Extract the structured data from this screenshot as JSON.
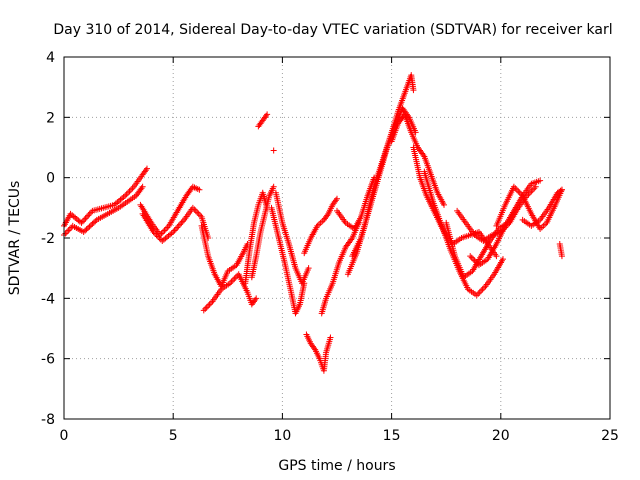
{
  "chart_data": {
    "type": "scatter",
    "title": "Day 310 of 2014, Sidereal Day-to-day VTEC variation (SDTVAR) for receiver karl",
    "xlabel": "GPS time / hours",
    "ylabel": "SDTVAR / TECUs",
    "xlim": [
      0,
      25
    ],
    "ylim": [
      -8,
      4
    ],
    "xticks": [
      0,
      5,
      10,
      15,
      20,
      25
    ],
    "yticks": [
      -8,
      -6,
      -4,
      -2,
      0,
      2,
      4
    ],
    "grid": true,
    "marker": "+",
    "color": "#ff0000",
    "series": [
      {
        "name": "SDTVAR",
        "tracks": [
          {
            "points": [
              [
                0.0,
                -1.6
              ],
              [
                0.3,
                -1.2
              ],
              [
                0.8,
                -1.5
              ],
              [
                1.3,
                -1.1
              ],
              [
                1.8,
                -1.0
              ],
              [
                2.3,
                -0.9
              ],
              [
                2.8,
                -0.6
              ],
              [
                3.2,
                -0.3
              ],
              [
                3.6,
                0.1
              ],
              [
                3.8,
                0.3
              ]
            ]
          },
          {
            "points": [
              [
                0.0,
                -1.9
              ],
              [
                0.4,
                -1.6
              ],
              [
                0.9,
                -1.8
              ],
              [
                1.5,
                -1.4
              ],
              [
                2.0,
                -1.2
              ],
              [
                2.5,
                -1.0
              ],
              [
                2.9,
                -0.8
              ],
              [
                3.3,
                -0.6
              ],
              [
                3.6,
                -0.3
              ]
            ]
          },
          {
            "points": [
              [
                3.5,
                -0.9
              ],
              [
                4.0,
                -1.5
              ],
              [
                4.4,
                -1.9
              ],
              [
                4.8,
                -1.6
              ],
              [
                5.2,
                -1.1
              ],
              [
                5.6,
                -0.6
              ],
              [
                5.9,
                -0.3
              ],
              [
                6.2,
                -0.4
              ]
            ]
          },
          {
            "points": [
              [
                3.6,
                -1.2
              ],
              [
                4.1,
                -1.8
              ],
              [
                4.5,
                -2.1
              ],
              [
                5.0,
                -1.8
              ],
              [
                5.5,
                -1.4
              ],
              [
                5.9,
                -1.0
              ],
              [
                6.3,
                -1.3
              ],
              [
                6.6,
                -2.0
              ]
            ]
          },
          {
            "points": [
              [
                6.3,
                -1.6
              ],
              [
                6.6,
                -2.6
              ],
              [
                6.9,
                -3.2
              ],
              [
                7.2,
                -3.6
              ],
              [
                7.5,
                -3.1
              ],
              [
                7.9,
                -2.9
              ],
              [
                8.2,
                -2.5
              ],
              [
                8.4,
                -2.2
              ]
            ]
          },
          {
            "points": [
              [
                6.4,
                -4.4
              ],
              [
                6.8,
                -4.1
              ],
              [
                7.2,
                -3.7
              ],
              [
                7.6,
                -3.5
              ],
              [
                8.0,
                -3.2
              ],
              [
                8.4,
                -3.8
              ],
              [
                8.6,
                -4.2
              ],
              [
                8.8,
                -4.0
              ]
            ]
          },
          {
            "points": [
              [
                8.3,
                -3.5
              ],
              [
                8.5,
                -2.4
              ],
              [
                8.7,
                -1.5
              ],
              [
                8.9,
                -0.9
              ],
              [
                9.1,
                -0.5
              ],
              [
                9.3,
                -1.0
              ]
            ]
          },
          {
            "points": [
              [
                8.6,
                -3.3
              ],
              [
                8.8,
                -2.6
              ],
              [
                9.0,
                -1.8
              ],
              [
                9.2,
                -1.2
              ],
              [
                9.4,
                -0.6
              ],
              [
                9.6,
                -0.3
              ]
            ]
          },
          {
            "points": [
              [
                8.9,
                1.7
              ],
              [
                9.0,
                1.8
              ],
              [
                9.1,
                1.9
              ],
              [
                9.2,
                2.0
              ],
              [
                9.3,
                2.1
              ]
            ]
          },
          {
            "points": [
              [
                9.5,
                -1.0
              ],
              [
                9.8,
                -1.9
              ],
              [
                10.1,
                -2.8
              ],
              [
                10.4,
                -3.8
              ],
              [
                10.6,
                -4.5
              ],
              [
                10.8,
                -4.2
              ],
              [
                11.0,
                -3.5
              ]
            ]
          },
          {
            "points": [
              [
                9.7,
                -0.5
              ],
              [
                10.0,
                -1.5
              ],
              [
                10.3,
                -2.2
              ],
              [
                10.6,
                -3.0
              ],
              [
                10.9,
                -3.5
              ],
              [
                11.2,
                -3.0
              ]
            ]
          },
          {
            "points": [
              [
                11.1,
                -5.2
              ],
              [
                11.3,
                -5.5
              ],
              [
                11.5,
                -5.7
              ],
              [
                11.7,
                -6.0
              ],
              [
                11.9,
                -6.4
              ],
              [
                12.0,
                -5.8
              ],
              [
                12.2,
                -5.3
              ]
            ]
          },
          {
            "points": [
              [
                11.0,
                -2.5
              ],
              [
                11.3,
                -2.0
              ],
              [
                11.6,
                -1.6
              ],
              [
                11.9,
                -1.4
              ],
              [
                12.1,
                -1.2
              ],
              [
                12.3,
                -0.9
              ],
              [
                12.5,
                -0.7
              ]
            ]
          },
          {
            "points": [
              [
                11.8,
                -4.5
              ],
              [
                12.0,
                -4.0
              ],
              [
                12.3,
                -3.5
              ],
              [
                12.6,
                -2.8
              ],
              [
                12.9,
                -2.3
              ],
              [
                13.2,
                -2.0
              ],
              [
                13.5,
                -1.5
              ]
            ]
          },
          {
            "points": [
              [
                12.5,
                -1.1
              ],
              [
                12.9,
                -1.5
              ],
              [
                13.3,
                -1.7
              ],
              [
                13.6,
                -1.3
              ],
              [
                13.9,
                -0.6
              ],
              [
                14.2,
                0.0
              ]
            ]
          },
          {
            "points": [
              [
                13.0,
                -3.2
              ],
              [
                13.4,
                -2.5
              ],
              [
                13.8,
                -1.5
              ],
              [
                14.2,
                -0.3
              ],
              [
                14.6,
                0.6
              ],
              [
                15.0,
                1.5
              ],
              [
                15.3,
                2.2
              ],
              [
                15.6,
                2.8
              ],
              [
                15.9,
                3.4
              ],
              [
                16.0,
                2.9
              ]
            ]
          },
          {
            "points": [
              [
                13.2,
                -2.6
              ],
              [
                13.6,
                -2.0
              ],
              [
                14.0,
                -1.0
              ],
              [
                14.4,
                0.0
              ],
              [
                14.8,
                1.0
              ],
              [
                15.2,
                1.8
              ],
              [
                15.5,
                2.3
              ],
              [
                15.8,
                2.0
              ],
              [
                16.1,
                1.5
              ]
            ]
          },
          {
            "points": [
              [
                15.0,
                1.2
              ],
              [
                15.3,
                1.8
              ],
              [
                15.6,
                2.1
              ],
              [
                15.9,
                1.5
              ],
              [
                16.2,
                1.0
              ],
              [
                16.5,
                0.7
              ],
              [
                16.8,
                0.1
              ],
              [
                17.1,
                -0.5
              ],
              [
                17.4,
                -0.9
              ]
            ]
          },
          {
            "points": [
              [
                16.0,
                1.0
              ],
              [
                16.3,
                0.0
              ],
              [
                16.6,
                -0.6
              ],
              [
                17.0,
                -1.2
              ],
              [
                17.4,
                -1.8
              ],
              [
                17.8,
                -2.2
              ],
              [
                18.2,
                -2.0
              ],
              [
                18.6,
                -1.9
              ],
              [
                19.0,
                -1.8
              ],
              [
                19.4,
                -2.2
              ],
              [
                19.8,
                -2.6
              ]
            ]
          },
          {
            "points": [
              [
                16.5,
                0.2
              ],
              [
                16.9,
                -0.8
              ],
              [
                17.3,
                -1.6
              ],
              [
                17.7,
                -2.4
              ],
              [
                18.1,
                -3.1
              ],
              [
                18.5,
                -3.7
              ],
              [
                18.9,
                -3.9
              ],
              [
                19.3,
                -3.6
              ],
              [
                19.7,
                -3.2
              ],
              [
                20.1,
                -2.7
              ]
            ]
          },
          {
            "points": [
              [
                17.5,
                -1.5
              ],
              [
                17.9,
                -2.6
              ],
              [
                18.3,
                -3.3
              ],
              [
                18.7,
                -3.1
              ],
              [
                19.1,
                -2.6
              ],
              [
                19.5,
                -2.1
              ],
              [
                19.9,
                -1.7
              ],
              [
                20.3,
                -1.5
              ]
            ]
          },
          {
            "points": [
              [
                18.0,
                -1.1
              ],
              [
                18.4,
                -1.5
              ],
              [
                18.8,
                -1.9
              ],
              [
                19.2,
                -2.1
              ],
              [
                19.6,
                -1.9
              ],
              [
                20.0,
                -1.8
              ],
              [
                20.4,
                -1.5
              ],
              [
                20.8,
                -1.0
              ],
              [
                21.2,
                -0.6
              ],
              [
                21.6,
                -0.3
              ]
            ]
          },
          {
            "points": [
              [
                18.6,
                -2.6
              ],
              [
                19.0,
                -2.9
              ],
              [
                19.4,
                -2.7
              ],
              [
                19.8,
                -2.2
              ],
              [
                20.2,
                -1.6
              ],
              [
                20.6,
                -1.1
              ],
              [
                21.0,
                -0.6
              ],
              [
                21.4,
                -0.2
              ],
              [
                21.8,
                -0.1
              ]
            ]
          },
          {
            "points": [
              [
                19.8,
                -1.6
              ],
              [
                20.2,
                -0.9
              ],
              [
                20.6,
                -0.3
              ],
              [
                21.0,
                -0.6
              ],
              [
                21.4,
                -1.2
              ],
              [
                21.8,
                -1.7
              ],
              [
                22.1,
                -1.5
              ],
              [
                22.5,
                -0.9
              ],
              [
                22.8,
                -0.4
              ]
            ]
          },
          {
            "points": [
              [
                21.0,
                -1.4
              ],
              [
                21.4,
                -1.6
              ],
              [
                21.8,
                -1.4
              ],
              [
                22.2,
                -1.0
              ],
              [
                22.6,
                -0.5
              ],
              [
                22.8,
                -0.4
              ]
            ]
          },
          {
            "points": [
              [
                22.7,
                -2.2
              ],
              [
                22.75,
                -2.4
              ],
              [
                22.8,
                -2.6
              ]
            ]
          }
        ]
      }
    ],
    "isolated_points": [
      [
        9.6,
        0.9
      ]
    ]
  }
}
